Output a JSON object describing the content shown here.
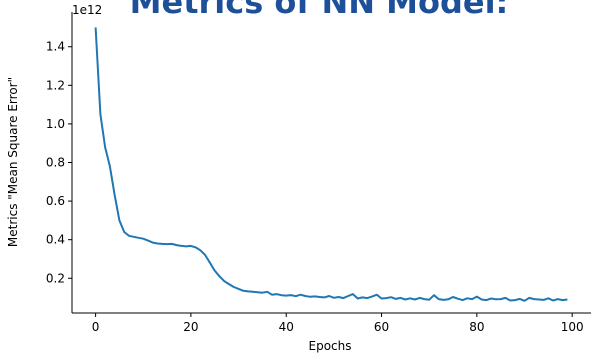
{
  "banner": {
    "title": "Metrics of NN Model:"
  },
  "chart_data": {
    "type": "line",
    "xlabel": "Epochs",
    "ylabel": "Metrics \"Mean Square Error\"",
    "y_offset_label": "1e12",
    "xlim": [
      -4.95,
      103.95
    ],
    "ylim": [
      0.02,
      1.58
    ],
    "x_ticks": [
      0,
      20,
      40,
      60,
      80,
      100
    ],
    "y_ticks": [
      0.2,
      0.4,
      0.6,
      0.8,
      1.0,
      1.2,
      1.4
    ],
    "y_tick_labels": [
      "0.2",
      "0.4",
      "0.6",
      "0.8",
      "1.0",
      "1.2",
      "1.4"
    ],
    "grid": false,
    "series": [
      {
        "color": "#1f77b4",
        "x": [
          0,
          1,
          2,
          3,
          4,
          5,
          6,
          7,
          8,
          9,
          10,
          11,
          12,
          13,
          14,
          15,
          16,
          17,
          18,
          19,
          20,
          21,
          22,
          23,
          24,
          25,
          26,
          27,
          28,
          29,
          30,
          31,
          32,
          33,
          34,
          35,
          36,
          37,
          38,
          39,
          40,
          41,
          42,
          43,
          44,
          45,
          46,
          47,
          48,
          49,
          50,
          51,
          52,
          53,
          54,
          55,
          56,
          57,
          58,
          59,
          60,
          61,
          62,
          63,
          64,
          65,
          66,
          67,
          68,
          69,
          70,
          71,
          72,
          73,
          74,
          75,
          76,
          77,
          78,
          79,
          80,
          81,
          82,
          83,
          84,
          85,
          86,
          87,
          88,
          89,
          90,
          91,
          92,
          93,
          94,
          95,
          96,
          97,
          98,
          99
        ],
        "values": [
          1.5,
          1.05,
          0.88,
          0.78,
          0.63,
          0.5,
          0.44,
          0.42,
          0.415,
          0.41,
          0.405,
          0.395,
          0.385,
          0.38,
          0.378,
          0.377,
          0.378,
          0.372,
          0.368,
          0.365,
          0.368,
          0.36,
          0.345,
          0.32,
          0.28,
          0.24,
          0.21,
          0.185,
          0.17,
          0.155,
          0.145,
          0.135,
          0.132,
          0.13,
          0.128,
          0.125,
          0.13,
          0.115,
          0.118,
          0.112,
          0.11,
          0.113,
          0.107,
          0.115,
          0.108,
          0.104,
          0.106,
          0.103,
          0.101,
          0.108,
          0.099,
          0.103,
          0.097,
          0.108,
          0.118,
          0.095,
          0.101,
          0.097,
          0.105,
          0.115,
          0.095,
          0.097,
          0.102,
          0.093,
          0.098,
          0.09,
          0.096,
          0.09,
          0.098,
          0.092,
          0.089,
          0.112,
          0.092,
          0.088,
          0.091,
          0.103,
          0.094,
          0.087,
          0.096,
          0.092,
          0.105,
          0.09,
          0.087,
          0.095,
          0.091,
          0.092,
          0.098,
          0.085,
          0.087,
          0.093,
          0.083,
          0.098,
          0.092,
          0.09,
          0.088,
          0.096,
          0.085,
          0.092,
          0.087,
          0.09
        ]
      }
    ]
  }
}
